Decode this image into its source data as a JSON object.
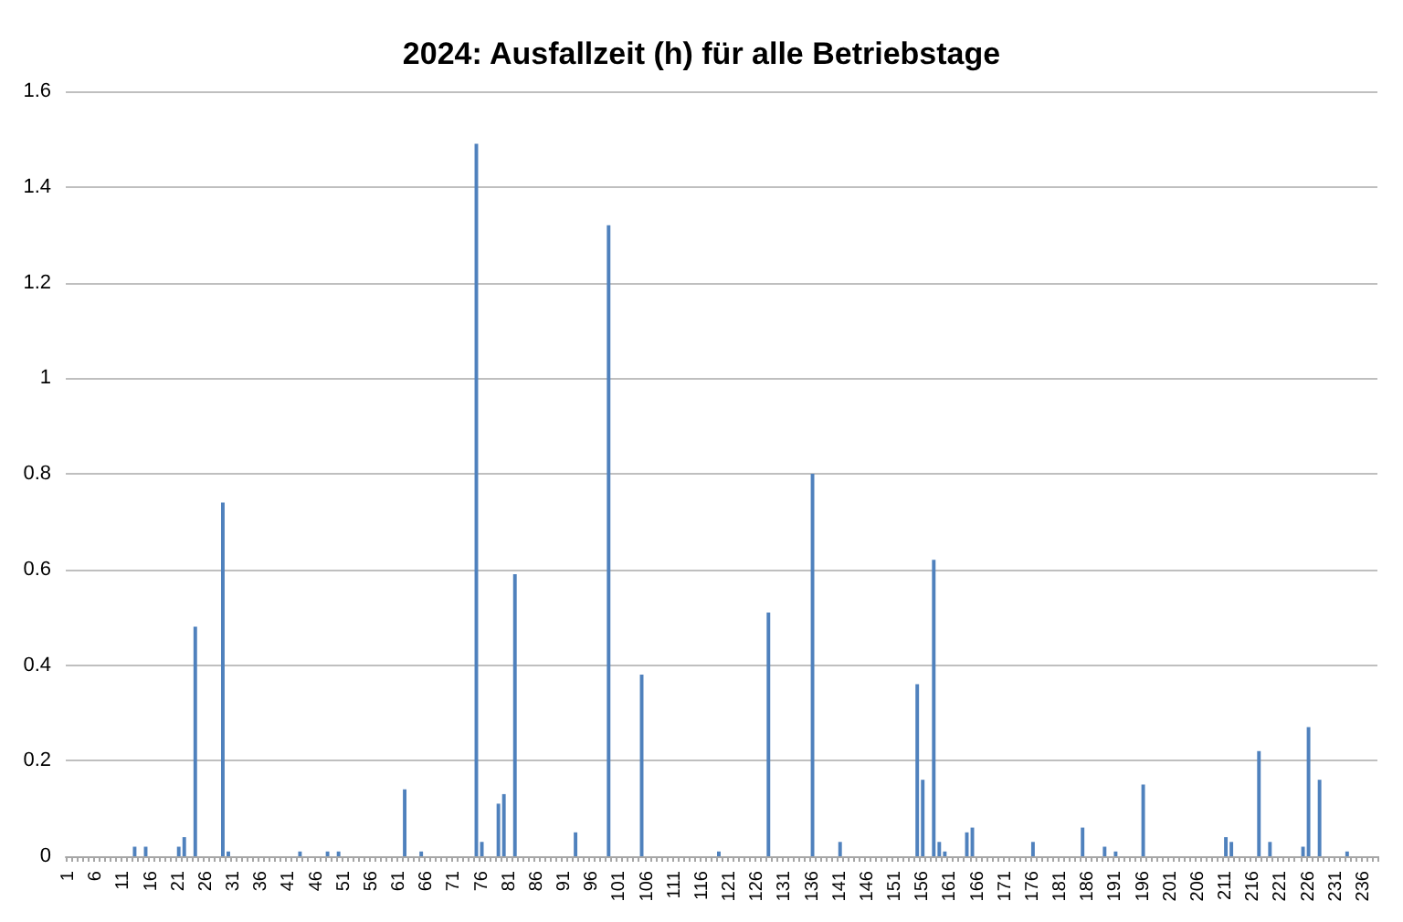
{
  "chart_data": {
    "type": "bar",
    "title": "2024: Ausfallzeit (h) für alle Betriebstage",
    "categories": [
      "1",
      null,
      null,
      null,
      null,
      "6",
      null,
      null,
      null,
      null,
      "11",
      null,
      null,
      null,
      null,
      "16",
      null,
      null,
      null,
      null,
      "21",
      null,
      null,
      null,
      null,
      "26",
      null,
      null,
      null,
      null,
      "31",
      null,
      null,
      null,
      null,
      "36",
      null,
      null,
      null,
      null,
      "41",
      null,
      null,
      null,
      null,
      "46",
      null,
      null,
      null,
      null,
      "51",
      null,
      null,
      null,
      null,
      "56",
      null,
      null,
      null,
      null,
      "61",
      null,
      null,
      null,
      null,
      "66",
      null,
      null,
      null,
      null,
      "71",
      null,
      null,
      null,
      null,
      "76",
      null,
      null,
      null,
      null,
      "81",
      null,
      null,
      null,
      null,
      "86",
      null,
      null,
      null,
      null,
      "91",
      null,
      null,
      null,
      null,
      "96",
      null,
      null,
      null,
      null,
      "101",
      null,
      null,
      null,
      null,
      "106",
      null,
      null,
      null,
      null,
      "111",
      null,
      null,
      null,
      null,
      "116",
      null,
      null,
      null,
      null,
      "121",
      null,
      null,
      null,
      null,
      "126",
      null,
      null,
      null,
      null,
      "131",
      null,
      null,
      null,
      null,
      "136",
      null,
      null,
      null,
      null,
      "141",
      null,
      null,
      null,
      null,
      "146",
      null,
      null,
      null,
      null,
      "151",
      null,
      null,
      null,
      null,
      "156",
      null,
      null,
      null,
      null,
      "161",
      null,
      null,
      null,
      null,
      "166",
      null,
      null,
      null,
      null,
      "171",
      null,
      null,
      null,
      null,
      "176",
      null,
      null,
      null,
      null,
      "181",
      null,
      null,
      null,
      null,
      "186",
      null,
      null,
      null,
      null,
      "191",
      null,
      null,
      null,
      null,
      "196",
      null,
      null,
      null,
      null,
      "201",
      null,
      null,
      null,
      null,
      "206",
      null,
      null,
      null,
      null,
      "211",
      null,
      null,
      null,
      null,
      "216",
      null,
      null,
      null,
      null,
      "221",
      null,
      null,
      null,
      null,
      "226",
      null,
      null,
      null,
      null,
      "231",
      null,
      null,
      null,
      null,
      "236",
      null,
      null
    ],
    "values": [
      0,
      0,
      0,
      0,
      0,
      0,
      0,
      0,
      0,
      0,
      0,
      0,
      0.02,
      0,
      0.02,
      0,
      0,
      0,
      0,
      0,
      0.02,
      0.04,
      0,
      0.48,
      0,
      0,
      0,
      0,
      0.74,
      0.01,
      0,
      0,
      0,
      0,
      0,
      0,
      0,
      0,
      0,
      0,
      0,
      0,
      0.01,
      0,
      0,
      0,
      0,
      0.01,
      0,
      0.01,
      0,
      0,
      0,
      0,
      0,
      0,
      0,
      0,
      0,
      0,
      0,
      0.14,
      0,
      0,
      0.01,
      0,
      0,
      0,
      0,
      0,
      0,
      0,
      0,
      0,
      1.49,
      0.03,
      0,
      0,
      0.11,
      0.13,
      0,
      0.59,
      0,
      0,
      0,
      0,
      0,
      0,
      0,
      0,
      0,
      0,
      0.05,
      0,
      0,
      0,
      0,
      0,
      1.32,
      0,
      0,
      0,
      0,
      0,
      0.38,
      0,
      0,
      0,
      0,
      0,
      0,
      0,
      0,
      0,
      0,
      0,
      0,
      0,
      0.01,
      0,
      0,
      0,
      0,
      0,
      0,
      0,
      0,
      0.51,
      0,
      0,
      0,
      0,
      0,
      0,
      0,
      0.8,
      0,
      0,
      0,
      0,
      0.03,
      0,
      0,
      0,
      0,
      0,
      0,
      0,
      0,
      0,
      0,
      0,
      0,
      0,
      0.36,
      0.16,
      0,
      0.62,
      0.03,
      0.01,
      0,
      0,
      0,
      0.05,
      0.06,
      0,
      0,
      0,
      0,
      0,
      0,
      0,
      0,
      0,
      0,
      0.03,
      0,
      0,
      0,
      0,
      0,
      0,
      0,
      0,
      0.06,
      0,
      0,
      0,
      0.02,
      0,
      0.01,
      0,
      0,
      0,
      0,
      0.15,
      0,
      0,
      0,
      0,
      0,
      0,
      0,
      0,
      0,
      0,
      0,
      0,
      0,
      0,
      0.04,
      0.03,
      0,
      0,
      0,
      0,
      0.22,
      0,
      0.03,
      0,
      0,
      0,
      0,
      0,
      0.02,
      0.27,
      0,
      0.16,
      0,
      0,
      0,
      0,
      0.01,
      0,
      0,
      0,
      0,
      0
    ],
    "color": "#4f81bd",
    "ylim": [
      0,
      1.6
    ],
    "yticks": [
      0,
      0.2,
      0.4,
      0.6,
      0.8,
      1,
      1.2,
      1.4,
      1.6
    ],
    "grid": "y"
  }
}
